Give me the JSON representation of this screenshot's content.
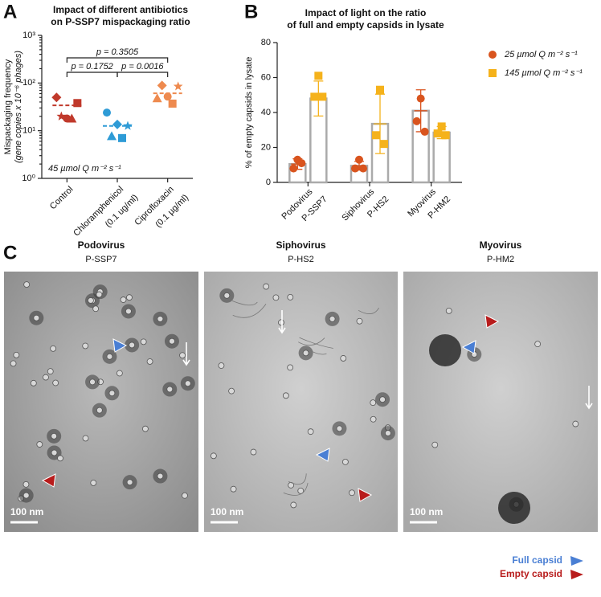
{
  "chart_data": [
    {
      "panel": "A",
      "type": "scatter",
      "title": [
        "Impact of different antibiotics",
        "on P-SSP7 mispackaging ratio"
      ],
      "ylabel": [
        "Mispackaging frequency",
        "(gene copies x 10⁻⁶ phages)"
      ],
      "annotation": "45 µmol Q m⁻² s⁻¹",
      "categories": [
        [
          "Control"
        ],
        [
          "Chloramphenicol",
          "(0.1 ug/ml)"
        ],
        [
          "Ciprofloxacin",
          "(0.1 µg/ml)"
        ]
      ],
      "log_scale": true,
      "ylim": [
        1,
        1000
      ],
      "yticks": [
        {
          "value": 1,
          "label": "10⁰"
        },
        {
          "value": 10,
          "label": "10¹"
        },
        {
          "value": 100,
          "label": "10²"
        },
        {
          "value": 1000,
          "label": "10³"
        }
      ],
      "groups": [
        {
          "color": "#c0392b",
          "mean": 34,
          "points": [
            {
              "marker": "diamond",
              "value": 50
            },
            {
              "marker": "circle",
              "value": 18
            },
            {
              "marker": "square",
              "value": 38
            },
            {
              "marker": "star",
              "value": 20
            },
            {
              "marker": "triangle",
              "value": 18
            }
          ]
        },
        {
          "color": "#2e9bd6",
          "mean": 12.6,
          "points": [
            {
              "marker": "circle",
              "value": 24
            },
            {
              "marker": "diamond",
              "value": 13.5
            },
            {
              "marker": "star",
              "value": 12.6
            },
            {
              "marker": "triangle",
              "value": 7.7
            },
            {
              "marker": "square",
              "value": 7
            }
          ]
        },
        {
          "color": "#ee8a4f",
          "mean": 61,
          "points": [
            {
              "marker": "triangle",
              "value": 48
            },
            {
              "marker": "circle",
              "value": 52
            },
            {
              "marker": "star",
              "value": 85
            },
            {
              "marker": "diamond",
              "value": 89
            },
            {
              "marker": "square",
              "value": 37
            }
          ]
        }
      ],
      "comparisons": [
        {
          "label": "p = 0.3505",
          "from": 0,
          "to": 2
        },
        {
          "label": "p = 0.1752",
          "from": 0,
          "to": 1
        },
        {
          "label": "p = 0.0016",
          "from": 1,
          "to": 2
        }
      ]
    },
    {
      "panel": "B",
      "type": "bar",
      "title": [
        "Impact of light on the ratio",
        "of full and empty capsids in lysate"
      ],
      "ylabel": "% of empty capsids in lysate",
      "categories": [
        [
          "Podovirus",
          "P-SSP7"
        ],
        [
          "Siphovirus",
          "P-HS2"
        ],
        [
          "Myovirus",
          "P-HM2"
        ]
      ],
      "ylim": [
        0,
        80
      ],
      "yticks": [
        0,
        20,
        40,
        60,
        80
      ],
      "bar_outline": "#aaaaaa",
      "legend": "upper right",
      "series": [
        {
          "name": "25 µmol Q m⁻² s⁻¹",
          "color": "#d9541e",
          "marker": "circle",
          "values": [
            10.5,
            9.5,
            41
          ],
          "errors": [
            3,
            2.5,
            12
          ],
          "points": [
            [
              13,
              8,
              11
            ],
            [
              13,
              8,
              8
            ],
            [
              48,
              35,
              29
            ]
          ]
        },
        {
          "name": "145 µmol Q m⁻² s⁻¹",
          "color": "#f5b21b",
          "marker": "square",
          "values": [
            48,
            33.5,
            28.5
          ],
          "errors": [
            10,
            17,
            3.5
          ],
          "points": [
            [
              61,
              49,
              49
            ],
            [
              53,
              27,
              22
            ],
            [
              32,
              28,
              27
            ]
          ]
        }
      ]
    }
  ],
  "micrographs": {
    "panel": "C",
    "items": [
      {
        "title": "Podovirus",
        "subtitle": "P-SSP7",
        "scale": "100 nm"
      },
      {
        "title": "Siphovirus",
        "subtitle": "P-HS2",
        "scale": "100 nm"
      },
      {
        "title": "Myovirus",
        "subtitle": "P-HM2",
        "scale": "100 nm"
      }
    ],
    "legend": [
      {
        "name": "Full capsid",
        "color": "#4a7fd4"
      },
      {
        "name": "Empty capsid",
        "color": "#b81c1c"
      }
    ]
  }
}
